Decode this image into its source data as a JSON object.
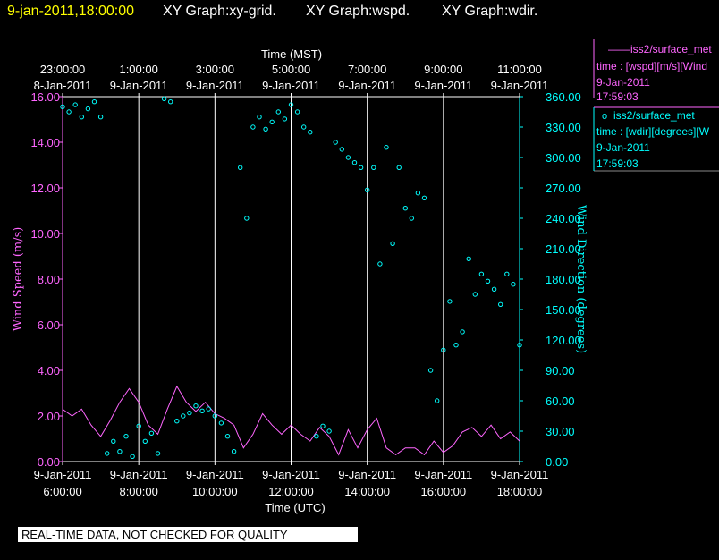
{
  "header": {
    "timestamp": "9-jan-2011,18:00:00",
    "title_1": "XY Graph:xy-grid.",
    "title_2": "XY Graph:wspd.",
    "title_3": "XY Graph:wdir."
  },
  "top_axis": {
    "label": "Time (MST)",
    "ticks": [
      {
        "time": "23:00:00",
        "date": "8-Jan-2011"
      },
      {
        "time": "1:00:00",
        "date": "9-Jan-2011"
      },
      {
        "time": "3:00:00",
        "date": "9-Jan-2011"
      },
      {
        "time": "5:00:00",
        "date": "9-Jan-2011"
      },
      {
        "time": "7:00:00",
        "date": "9-Jan-2011"
      },
      {
        "time": "9:00:00",
        "date": "9-Jan-2011"
      },
      {
        "time": "11:00:00",
        "date": "9-Jan-2011"
      }
    ]
  },
  "bottom_axis": {
    "label": "Time (UTC)",
    "ticks": [
      {
        "date": "9-Jan-2011",
        "time": "6:00:00"
      },
      {
        "date": "9-Jan-2011",
        "time": "8:00:00"
      },
      {
        "date": "9-Jan-2011",
        "time": "10:00:00"
      },
      {
        "date": "9-Jan-2011",
        "time": "12:00:00"
      },
      {
        "date": "9-Jan-2011",
        "time": "14:00:00"
      },
      {
        "date": "9-Jan-2011",
        "time": "16:00:00"
      },
      {
        "date": "9-Jan-2011",
        "time": "18:00:00"
      }
    ]
  },
  "legend": [
    {
      "marker": "——",
      "source": "iss2/surface_met",
      "field": "time : [wspd][m/s][Wind",
      "date": "9-Jan-2011",
      "time": "17:59:03",
      "color": "#ff66ff"
    },
    {
      "marker": "o",
      "source": "iss2/surface_met",
      "field": "time : [wdir][degrees][W",
      "date": "9-Jan-2011",
      "time": "17:59:03",
      "color": "#00ffff"
    }
  ],
  "quality_note": "REAL-TIME DATA, NOT CHECKED FOR QUALITY",
  "colors": {
    "speed": "#ff66ff",
    "direction": "#00ffff",
    "title": "#ffffff",
    "timestamp": "#ffff00",
    "grid": "#ffffff"
  },
  "chart_data": {
    "type": "line",
    "title": "",
    "xlabel": "Time (UTC)",
    "x2label": "Time (MST)",
    "xlim": [
      "2011-01-09T06:00:00Z",
      "2011-01-09T18:00:00Z"
    ],
    "y_left": {
      "label": "Wind Speed (m/s)",
      "lim": [
        0,
        16
      ],
      "ticks": [
        "0.00",
        "2.00",
        "4.00",
        "6.00",
        "8.00",
        "10.00",
        "12.00",
        "14.00",
        "16.00"
      ]
    },
    "y_right": {
      "label": "Wind Direction (degrees)",
      "lim": [
        0,
        360
      ],
      "ticks": [
        "0.00",
        "30.00",
        "60.00",
        "90.00",
        "120.00",
        "150.00",
        "180.00",
        "210.00",
        "240.00",
        "270.00",
        "300.00",
        "330.00",
        "360.00"
      ]
    },
    "grid": "vertical",
    "series": [
      {
        "name": "iss2/surface_met time : [wspd][m/s][Wind",
        "axis": "left",
        "style": "line",
        "x": [
          "06:00",
          "06:15",
          "06:30",
          "06:45",
          "07:00",
          "07:15",
          "07:30",
          "07:45",
          "08:00",
          "08:15",
          "08:30",
          "08:45",
          "09:00",
          "09:15",
          "09:30",
          "09:45",
          "10:00",
          "10:15",
          "10:30",
          "10:45",
          "11:00",
          "11:15",
          "11:30",
          "11:45",
          "12:00",
          "12:15",
          "12:30",
          "12:45",
          "13:00",
          "13:15",
          "13:30",
          "13:45",
          "14:00",
          "14:15",
          "14:30",
          "14:45",
          "15:00",
          "15:15",
          "15:30",
          "15:45",
          "16:00",
          "16:15",
          "16:30",
          "16:45",
          "17:00",
          "17:15",
          "17:30",
          "17:45",
          "18:00"
        ],
        "y": [
          2.3,
          2.0,
          2.3,
          1.6,
          1.1,
          1.8,
          2.6,
          3.2,
          2.6,
          1.6,
          1.2,
          2.3,
          3.3,
          2.6,
          2.2,
          2.6,
          2.1,
          1.9,
          1.6,
          0.6,
          1.2,
          2.1,
          1.6,
          1.2,
          1.6,
          1.2,
          0.9,
          1.5,
          1.1,
          0.3,
          1.4,
          0.6,
          1.4,
          1.9,
          0.6,
          0.3,
          0.6,
          0.6,
          0.3,
          0.9,
          0.4,
          0.7,
          1.3,
          1.5,
          1.1,
          1.6,
          1.0,
          1.3,
          0.9
        ]
      },
      {
        "name": "iss2/surface_met time : [wdir][degrees][W",
        "axis": "right",
        "style": "markers",
        "x": [
          "06:00",
          "06:10",
          "06:20",
          "06:30",
          "06:40",
          "06:50",
          "07:00",
          "07:10",
          "07:20",
          "07:30",
          "07:40",
          "07:50",
          "08:00",
          "08:10",
          "08:20",
          "08:30",
          "08:40",
          "08:50",
          "09:00",
          "09:10",
          "09:20",
          "09:30",
          "09:40",
          "09:50",
          "10:00",
          "10:10",
          "10:20",
          "10:30",
          "10:40",
          "10:50",
          "11:00",
          "11:10",
          "11:20",
          "11:30",
          "11:40",
          "11:50",
          "12:00",
          "12:10",
          "12:20",
          "12:30",
          "12:40",
          "12:50",
          "13:00",
          "13:10",
          "13:20",
          "13:30",
          "13:40",
          "13:50",
          "14:00",
          "14:10",
          "14:20",
          "14:30",
          "14:40",
          "14:50",
          "15:00",
          "15:10",
          "15:20",
          "15:30",
          "15:40",
          "15:50",
          "16:00",
          "16:10",
          "16:20",
          "16:30",
          "16:40",
          "16:50",
          "17:00",
          "17:10",
          "17:20",
          "17:30",
          "17:40",
          "17:50",
          "18:00"
        ],
        "y": [
          350,
          345,
          352,
          340,
          348,
          355,
          340,
          8,
          20,
          10,
          25,
          5,
          35,
          20,
          28,
          8,
          358,
          355,
          40,
          45,
          48,
          55,
          50,
          52,
          45,
          38,
          25,
          10,
          290,
          240,
          330,
          340,
          328,
          335,
          345,
          338,
          352,
          345,
          330,
          325,
          25,
          35,
          30,
          315,
          308,
          300,
          295,
          290,
          268,
          290,
          195,
          310,
          215,
          290,
          250,
          240,
          265,
          260,
          90,
          60,
          110,
          158,
          115,
          128,
          200,
          165,
          185,
          178,
          170,
          155,
          185,
          175,
          115
        ]
      }
    ]
  }
}
